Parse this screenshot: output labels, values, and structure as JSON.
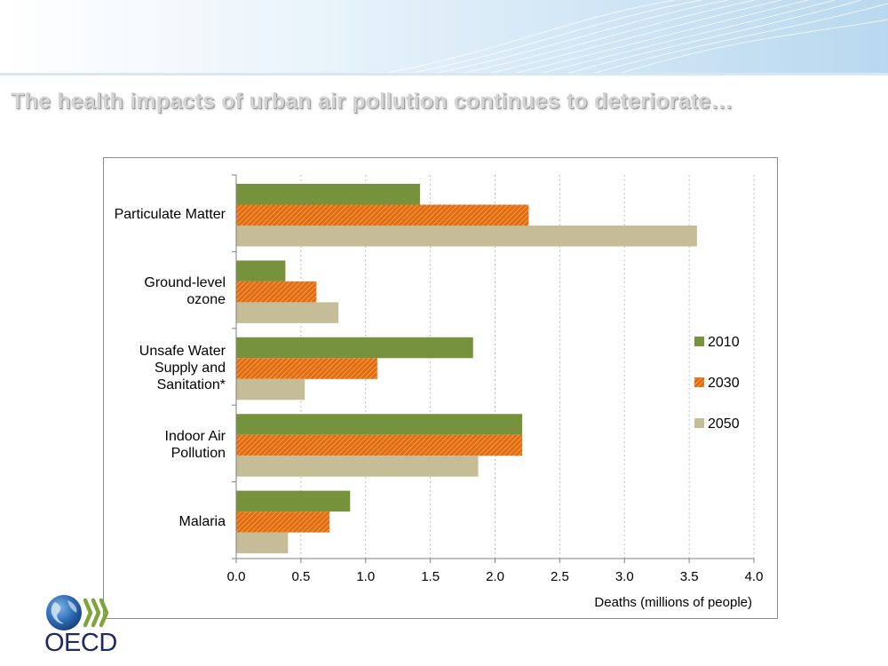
{
  "slide": {
    "title": "The health impacts of urban air pollution continues to deteriorate…"
  },
  "logo": {
    "text": "OECD"
  },
  "colors": {
    "2010": "#76923c",
    "2030": "#e46c0a",
    "2050": "#c4bd97",
    "gridline": "#bfbfbf",
    "axis": "#808080"
  },
  "chart_data": {
    "type": "bar",
    "orientation": "horizontal",
    "categories": [
      [
        "Particulate Matter"
      ],
      [
        "Ground-level",
        "ozone"
      ],
      [
        "Unsafe Water",
        "Supply and",
        "Sanitation*"
      ],
      [
        "Indoor Air",
        "Pollution"
      ],
      [
        "Malaria"
      ]
    ],
    "series": [
      {
        "name": "2010",
        "values": [
          1.42,
          0.38,
          1.83,
          2.21,
          0.88
        ]
      },
      {
        "name": "2030",
        "values": [
          2.26,
          0.62,
          1.09,
          2.21,
          0.72
        ]
      },
      {
        "name": "2050",
        "values": [
          3.56,
          0.79,
          0.53,
          1.87,
          0.4
        ]
      }
    ],
    "xlabel": "Deaths (millions of people)",
    "ylabel": "",
    "xlim": [
      0,
      4.0
    ],
    "xticks": [
      "0.0",
      "0.5",
      "1.0",
      "1.5",
      "2.0",
      "2.5",
      "3.0",
      "3.5",
      "4.0"
    ],
    "grid": "vertical dashed",
    "legend": "right",
    "title": ""
  }
}
